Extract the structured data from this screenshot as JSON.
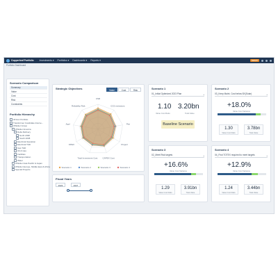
{
  "header": {
    "brand": "Copperleaf Portfolio",
    "menus": [
      "Investments ▾",
      "Portfolios ▾",
      "Dashboards ▾",
      "Reports ▾"
    ],
    "badge": "DEMO"
  },
  "breadcrumb": "Portfolio Dashboard",
  "scenario_comparison": {
    "title": "Scenario Comparison",
    "items": [
      "Summary",
      "Value",
      "Cost",
      "Risk",
      "Constraints"
    ],
    "selected": "Summary"
  },
  "portfolio_hierarchy": {
    "title": "Portfolio Hierarchy",
    "items": [
      "All Hoc Portfolio",
      "Transformer Candidate Interve...",
      "Whistler Group",
      "Whistler America",
      "Delta Refinery",
      "North 2038",
      "South 2038",
      "Electrical Operation",
      "Electrical T&D",
      "Gas T&D",
      "Oil & Gas",
      "Facilities",
      "Transportation",
      "Water",
      "Whistler Asia Pacific & Japan",
      "Whistler Europe, Middle East & Africa",
      "Special Projects"
    ]
  },
  "strategic_objectives": {
    "title": "Strategic Objectives",
    "toggle": [
      "Value",
      "Cost",
      "Risk"
    ],
    "toggle_active": "Value"
  },
  "chart_data": {
    "type": "radar",
    "title": "Strategic Objectives",
    "axes": [
      "CSR",
      "CO2 emissions",
      "Flat",
      "Project",
      "CAPEX Cost",
      "Total Investment Cost",
      "OPEX",
      "Appl",
      "Reliability Risk"
    ],
    "series": [
      {
        "name": "Scenario 1",
        "color": "#e8a44a",
        "values": [
          0.85,
          0.8,
          0.72,
          0.7,
          0.72,
          0.68,
          0.7,
          0.7,
          0.78
        ]
      },
      {
        "name": "Scenario 2",
        "color": "#5b8fcf",
        "values": [
          0.8,
          0.75,
          0.7,
          0.66,
          0.7,
          0.66,
          0.68,
          0.68,
          0.74
        ]
      },
      {
        "name": "Scenario 3",
        "color": "#9ccc65",
        "values": [
          0.78,
          0.74,
          0.66,
          0.64,
          0.68,
          0.62,
          0.66,
          0.66,
          0.72
        ]
      },
      {
        "name": "Scenario 4",
        "color": "#e26a6a",
        "values": [
          0.76,
          0.72,
          0.65,
          0.62,
          0.66,
          0.6,
          0.64,
          0.64,
          0.7
        ]
      }
    ],
    "grid_rings": 4
  },
  "fiscal_years": {
    "title": "Fiscal Years",
    "start": "2023",
    "end": "2027"
  },
  "scenario1": {
    "title": "Scenario 1",
    "selection": "01_Initial Optimized 2023 Plan",
    "value_cost_ratio": "1.10",
    "value_cost_label": "Value Cost Ratio",
    "total_value": "3.20bn",
    "total_value_label": "Total Value",
    "baseline": "Baseline Scenario"
  },
  "scenario2": {
    "title": "Scenario 2",
    "selection": "03_Keep Maint. Cost below $X(Solar)",
    "change": "+18.0%",
    "change_label": "Value Cost Variance",
    "change_fraction": 0.78,
    "value_cost_ratio": "1.30",
    "value_cost_label": "Value Cost Ratio",
    "total_value": "3.78bn",
    "total_value_label": "Total Value"
  },
  "scenario3": {
    "title": "Scenario 3",
    "selection": "02_Meet Risk targets",
    "change": "+16.6%",
    "change_label": "Value Cost Variance",
    "change_fraction": 0.75,
    "value_cost_ratio": "1.29",
    "value_cost_label": "Value Cost Ratio",
    "total_value": "3.91bn",
    "total_value_label": "Total Value"
  },
  "scenario4": {
    "title": "Scenario 4",
    "selection": "04_Find TOTEX required to meet targets",
    "change": "+12.9%",
    "change_label": "Value Cost Variance",
    "change_fraction": 0.7,
    "value_cost_ratio": "1.24",
    "value_cost_label": "Value Cost Ratio",
    "total_value": "3.44bn",
    "total_value_label": "Total Value"
  }
}
